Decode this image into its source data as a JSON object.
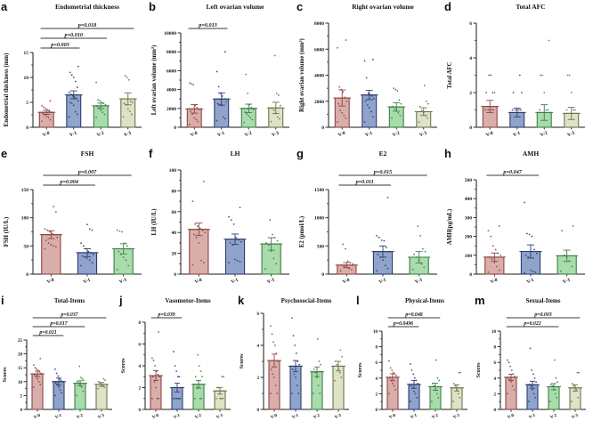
{
  "figure": {
    "background": "#ffffff",
    "palette": {
      "fills": [
        "#d9aeaa",
        "#8fa3cb",
        "#a9dcab",
        "#dde3c6"
      ],
      "strokes": [
        "#8c4543",
        "#2e3d6f",
        "#3f7d46",
        "#6f7350"
      ],
      "axis_color": "#1a1a1a",
      "sig_line_color": "#3a3a3a"
    },
    "rows": [
      4,
      4,
      5
    ]
  },
  "chart_data": [
    {
      "type": "bar",
      "letter": "a",
      "title": "Endometrial thickness",
      "ylabel": "Endometrial thickness (mm)",
      "xlabel": "",
      "ylim": [
        0,
        15
      ],
      "yticks": [
        0,
        5,
        10,
        15
      ],
      "categories": [
        "V-0",
        "V-1",
        "V-2",
        "V-3"
      ],
      "color_idx": [
        0,
        1,
        2,
        3
      ],
      "means": [
        3.0,
        6.5,
        4.3,
        5.7
      ],
      "errors": [
        0.4,
        0.8,
        0.55,
        1.2
      ],
      "points": [
        [
          1.2,
          1.5,
          2,
          2.2,
          2.5,
          2.8,
          3,
          3.2,
          3.5,
          3.8,
          4,
          4.3,
          5.3
        ],
        [
          2.1,
          2.6,
          3.1,
          4.4,
          4.8,
          5,
          5.3,
          5.8,
          6,
          6.3,
          6.6,
          7,
          8,
          9.2,
          10,
          10.5,
          11,
          12.2
        ],
        [
          2,
          2.6,
          3,
          3.4,
          3.9,
          4.2,
          4.5,
          4.8,
          5,
          5.3,
          5.5,
          9
        ],
        [
          2.1,
          2.6,
          3.2,
          3.7,
          4.5,
          4.8,
          5,
          5.2,
          9.5,
          10,
          10.3
        ]
      ],
      "significance": [
        {
          "pair": [
            0,
            1
          ],
          "label": "p=0.003"
        },
        {
          "pair": [
            0,
            2
          ],
          "label": "p=0.010"
        },
        {
          "pair": [
            0,
            3
          ],
          "label": "p=0.018"
        }
      ]
    },
    {
      "type": "bar",
      "letter": "b",
      "title": "Left ovarian volume",
      "ylabel": "Left ovarian volume (mm³)",
      "xlabel": "",
      "ylim": [
        0,
        10000
      ],
      "yticks": [
        0,
        2000,
        4000,
        6000,
        8000,
        10000
      ],
      "categories": [
        "V-0",
        "V-1",
        "V-2",
        "V-3"
      ],
      "color_idx": [
        0,
        1,
        2,
        3
      ],
      "means": [
        1950,
        3000,
        2000,
        2050
      ],
      "errors": [
        450,
        650,
        450,
        600
      ],
      "points": [
        [
          300,
          600,
          800,
          1000,
          1400,
          1700,
          1900,
          2100,
          2300,
          4500,
          4600,
          4700
        ],
        [
          700,
          900,
          1100,
          2300,
          2400,
          2500,
          2700,
          3000,
          3300,
          3600,
          4300,
          5900,
          8000
        ],
        [
          500,
          800,
          1000,
          1200,
          1400,
          1600,
          1900,
          2100,
          2400,
          3600,
          5600
        ],
        [
          600,
          900,
          1100,
          1500,
          1800,
          2000,
          2300,
          3400,
          3600,
          7600
        ]
      ],
      "significance": [
        {
          "pair": [
            0,
            1
          ],
          "label": "p=0.013"
        }
      ]
    },
    {
      "type": "bar",
      "letter": "c",
      "title": "Right ovarian volume",
      "ylabel": "Right ovarian volume (mm³)",
      "xlabel": "",
      "ylim": [
        0,
        8000
      ],
      "yticks": [
        0,
        2000,
        4000,
        6000,
        8000
      ],
      "categories": [
        "V-0",
        "V-1",
        "V-2",
        "V-3"
      ],
      "color_idx": [
        0,
        1,
        2,
        3
      ],
      "means": [
        2250,
        2480,
        1560,
        1200
      ],
      "errors": [
        620,
        350,
        330,
        300
      ],
      "points": [
        [
          400,
          700,
          900,
          1100,
          1300,
          1800,
          2000,
          2300,
          2700,
          2900,
          3100,
          6100,
          6700
        ],
        [
          400,
          800,
          1200,
          1500,
          1700,
          2000,
          2200,
          2400,
          2500,
          2600,
          3800,
          5100,
          5200
        ],
        [
          700,
          900,
          1100,
          1300,
          1400,
          1600,
          1800,
          2100,
          2800,
          2900,
          3000
        ],
        [
          400,
          700,
          900,
          1100,
          1300,
          1600,
          1800,
          2000,
          3200
        ]
      ],
      "significance": []
    },
    {
      "type": "bar",
      "letter": "d",
      "title": "Total AFC",
      "ylabel": "Total AFC",
      "xlabel": "",
      "ylim": [
        0,
        6
      ],
      "yticks": [
        0,
        2,
        4,
        6
      ],
      "categories": [
        "V-0",
        "V-1",
        "V-2",
        "V-3"
      ],
      "color_idx": [
        0,
        1,
        2,
        3
      ],
      "means": [
        1.2,
        0.85,
        0.85,
        0.8
      ],
      "errors": [
        0.35,
        0.25,
        0.45,
        0.35
      ],
      "points": [
        [
          1,
          1,
          1,
          1,
          1,
          2,
          2,
          2,
          3,
          3
        ],
        [
          1,
          1,
          1,
          1,
          1,
          2,
          2,
          3
        ],
        [
          1,
          1,
          1,
          2,
          3,
          3,
          5
        ],
        [
          1,
          1,
          1,
          2,
          3,
          3
        ]
      ],
      "significance": []
    },
    {
      "type": "bar",
      "letter": "e",
      "title": "FSH",
      "ylabel": "FSH (IU/L)",
      "xlabel": "",
      "ylim": [
        0,
        150
      ],
      "yticks": [
        0,
        50,
        100,
        150
      ],
      "categories": [
        "V-0",
        "V-1",
        "V-3"
      ],
      "color_idx": [
        0,
        1,
        2
      ],
      "means": [
        70,
        38,
        45
      ],
      "errors": [
        7,
        7,
        9
      ],
      "points": [
        [
          45,
          48,
          50,
          52,
          55,
          60,
          65,
          70,
          72,
          75,
          78,
          80,
          110,
          120
        ],
        [
          15,
          20,
          25,
          28,
          30,
          32,
          35,
          38,
          40,
          45,
          50,
          55,
          78,
          80,
          88
        ],
        [
          8,
          15,
          25,
          30,
          35,
          40,
          45,
          50,
          55,
          75,
          76,
          78
        ]
      ],
      "significance": [
        {
          "pair": [
            0,
            1
          ],
          "label": "p=0.004"
        },
        {
          "pair": [
            0,
            2
          ],
          "label": "p=0.007"
        }
      ]
    },
    {
      "type": "bar",
      "letter": "f",
      "title": "LH",
      "ylabel": "LH (IU/L)",
      "xlabel": "",
      "ylim": [
        0,
        100
      ],
      "yticks": [
        0,
        20,
        40,
        60,
        80,
        100
      ],
      "categories": [
        "V-0",
        "V-1",
        "V-3"
      ],
      "color_idx": [
        0,
        1,
        2
      ],
      "means": [
        43,
        33.5,
        29
      ],
      "errors": [
        6,
        5,
        6
      ],
      "points": [
        [
          9,
          11,
          13,
          30,
          35,
          38,
          40,
          42,
          44,
          46,
          48,
          70,
          89
        ],
        [
          11,
          12,
          13,
          14,
          28,
          30,
          31,
          33,
          35,
          48,
          52,
          55,
          64
        ],
        [
          5,
          10,
          15,
          22,
          28,
          30,
          32,
          35,
          38,
          52
        ]
      ],
      "significance": []
    },
    {
      "type": "bar",
      "letter": "g",
      "title": "E2",
      "ylabel": "E2 (pmol/L)",
      "xlabel": "",
      "ylim": [
        0,
        1500
      ],
      "yticks": [
        0,
        500,
        1000,
        1500
      ],
      "categories": [
        "V-0",
        "V-1",
        "V-3"
      ],
      "color_idx": [
        0,
        1,
        2
      ],
      "means": [
        160,
        400,
        300
      ],
      "errors": [
        45,
        100,
        100
      ],
      "points": [
        [
          60,
          80,
          100,
          120,
          140,
          160,
          180,
          200,
          230,
          450,
          530
        ],
        [
          60,
          100,
          150,
          250,
          300,
          350,
          400,
          470,
          590,
          600,
          650,
          680,
          1360
        ],
        [
          80,
          120,
          180,
          250,
          300,
          350,
          400,
          450,
          680,
          850
        ]
      ],
      "significance": [
        {
          "pair": [
            0,
            1
          ],
          "label": "p=0.011"
        },
        {
          "pair": [
            0,
            2
          ],
          "label": "p=0.015"
        }
      ]
    },
    {
      "type": "bar",
      "letter": "h",
      "title": "AMH",
      "ylabel": "AMH(pg/mL)",
      "xlabel": "",
      "ylim": [
        0,
        500
      ],
      "yticks": [
        0,
        100,
        200,
        300,
        400,
        500
      ],
      "categories": [
        "V-0",
        "V-1",
        "V-3"
      ],
      "color_idx": [
        0,
        1,
        2
      ],
      "means": [
        90,
        120,
        97
      ],
      "errors": [
        22,
        35,
        30
      ],
      "points": [
        [
          10,
          20,
          40,
          60,
          80,
          90,
          100,
          110,
          130,
          150,
          200,
          230,
          255
        ],
        [
          5,
          10,
          15,
          20,
          90,
          100,
          110,
          130,
          200,
          210,
          215,
          380
        ],
        [
          15,
          40,
          70,
          90,
          100,
          230,
          255
        ]
      ],
      "significance": [
        {
          "pair": [
            0,
            1
          ],
          "label": "p=0.047"
        }
      ]
    },
    {
      "type": "bar",
      "letter": "i",
      "title": "Total-Items",
      "ylabel": "Scores",
      "xlabel": "",
      "ylim": [
        0,
        25
      ],
      "yticks": [
        0,
        5,
        10,
        15,
        20,
        25
      ],
      "categories": [
        "V-0",
        "V-1",
        "V-2",
        "V-3"
      ],
      "color_idx": [
        0,
        1,
        2,
        3
      ],
      "means": [
        12.8,
        10.0,
        9.4,
        9.0
      ],
      "errors": [
        1.0,
        1.3,
        0.9,
        0.7
      ],
      "points": [
        [
          8,
          9,
          10,
          11,
          12,
          12.5,
          13,
          13.5,
          14,
          14.5,
          15,
          16,
          18.3
        ],
        [
          5,
          6,
          7,
          8,
          9,
          9.5,
          10,
          10.5,
          11,
          12,
          13,
          14.5
        ],
        [
          5,
          6.5,
          8,
          9,
          9.5,
          10,
          10.5,
          11,
          11.5,
          15.5
        ],
        [
          7.5,
          8,
          8.5,
          9,
          9.5,
          10,
          10.5,
          11
        ]
      ],
      "significance": [
        {
          "pair": [
            0,
            1
          ],
          "label": "p=0.021"
        },
        {
          "pair": [
            0,
            2
          ],
          "label": "p=0.017"
        },
        {
          "pair": [
            0,
            3
          ],
          "label": "p=0.037"
        }
      ]
    },
    {
      "type": "bar",
      "letter": "j",
      "title": "Vasomotor-Items",
      "ylabel": "Scores",
      "xlabel": "",
      "ylim": [
        0,
        8
      ],
      "yticks": [
        0,
        2,
        4,
        6,
        8
      ],
      "categories": [
        "V-0",
        "V-1",
        "V-2",
        "V-3"
      ],
      "color_idx": [
        0,
        1,
        2,
        3
      ],
      "means": [
        3.1,
        2.0,
        2.3,
        1.7
      ],
      "errors": [
        0.45,
        0.4,
        0.35,
        0.3
      ],
      "points": [
        [
          1,
          1,
          1,
          2,
          2.5,
          3,
          3,
          3.2,
          3.5,
          4,
          4.5,
          4.7,
          7.1
        ],
        [
          1,
          1,
          1,
          1,
          1,
          2,
          2,
          3,
          3,
          3.5,
          4,
          5.3
        ],
        [
          1,
          1,
          1,
          2,
          2,
          3,
          3,
          3.5,
          4,
          5
        ],
        [
          1,
          1,
          1,
          1,
          2,
          2,
          3,
          3
        ]
      ],
      "significance": [
        {
          "pair": [
            0,
            1
          ],
          "label": "p=0.039"
        }
      ]
    },
    {
      "type": "bar",
      "letter": "k",
      "title": "Psychosocial-Items",
      "ylabel": "Scores",
      "xlabel": "",
      "ylim": [
        0,
        6
      ],
      "yticks": [
        0,
        2,
        4,
        6
      ],
      "categories": [
        "V-0",
        "V-1",
        "V-2",
        "V-3"
      ],
      "color_idx": [
        0,
        1,
        2,
        3
      ],
      "means": [
        3.05,
        2.7,
        2.35,
        2.7
      ],
      "errors": [
        0.4,
        0.35,
        0.3,
        0.3
      ],
      "points": [
        [
          1,
          1,
          1.5,
          2,
          2.2,
          2.5,
          3,
          3.5,
          4,
          4.2,
          4.7,
          5.2
        ],
        [
          1,
          1,
          1.5,
          2,
          2.2,
          2.5,
          2.8,
          3,
          3.5,
          4,
          4.6,
          5.7
        ],
        [
          1,
          1,
          1.5,
          2,
          2.3,
          2.5,
          2.8,
          3,
          4.4
        ],
        [
          1.8,
          2,
          2.3,
          2.5,
          2.8,
          3,
          3.3,
          3.7
        ]
      ],
      "significance": []
    },
    {
      "type": "bar",
      "letter": "l",
      "title": "Physical-Items",
      "ylabel": "Scores",
      "xlabel": "",
      "ylim": [
        0,
        10
      ],
      "yticks": [
        0,
        2,
        4,
        6,
        8,
        10
      ],
      "categories": [
        "V-0",
        "V-1",
        "V-2",
        "V-3"
      ],
      "color_idx": [
        0,
        1,
        2,
        3
      ],
      "means": [
        4.1,
        3.2,
        2.9,
        2.75
      ],
      "errors": [
        0.45,
        0.5,
        0.45,
        0.4
      ],
      "points": [
        [
          2,
          2.5,
          3,
          3.3,
          3.7,
          4,
          4.3,
          4.5,
          4.7,
          5,
          5.3,
          6.2
        ],
        [
          1,
          1.5,
          2,
          2.3,
          2.7,
          3,
          3.3,
          3.7,
          4,
          4.5,
          5,
          5.8
        ],
        [
          1,
          1.5,
          2,
          2.5,
          3,
          3.3,
          3.7,
          4,
          6.3
        ],
        [
          1,
          1.5,
          2,
          2.5,
          3,
          3.3,
          4.7,
          4.7
        ]
      ],
      "significance": [
        {
          "pair": [
            0,
            1
          ],
          "label": "p=0.0496"
        },
        {
          "pair": [
            0,
            2
          ],
          "label": "p=0.048"
        }
      ]
    },
    {
      "type": "bar",
      "letter": "m",
      "title": "Sexual-Items",
      "ylabel": "Scores",
      "xlabel": "",
      "ylim": [
        0,
        10
      ],
      "yticks": [
        0,
        2,
        4,
        6,
        8,
        10
      ],
      "categories": [
        "V-0",
        "V-1",
        "V-2",
        "V-3"
      ],
      "color_idx": [
        0,
        1,
        2,
        3
      ],
      "means": [
        4.1,
        3.15,
        2.9,
        2.75
      ],
      "errors": [
        0.4,
        0.45,
        0.4,
        0.4
      ],
      "points": [
        [
          2,
          2.5,
          3,
          3.5,
          3.8,
          4,
          4.2,
          4.5,
          5,
          5.5,
          6,
          6.3
        ],
        [
          1,
          1.5,
          2,
          2.5,
          3,
          3.2,
          3.5,
          4,
          4.5,
          5,
          7.8
        ],
        [
          1,
          1.5,
          2,
          2.5,
          3,
          3.2,
          3.5,
          4,
          6.3
        ],
        [
          1,
          1.5,
          2.5,
          2.8,
          3,
          3.3,
          4.7,
          4.7
        ]
      ],
      "significance": [
        {
          "pair": [
            0,
            2
          ],
          "label": "p=0.022"
        },
        {
          "pair": [
            0,
            3
          ],
          "label": "p=0.003"
        }
      ]
    }
  ]
}
